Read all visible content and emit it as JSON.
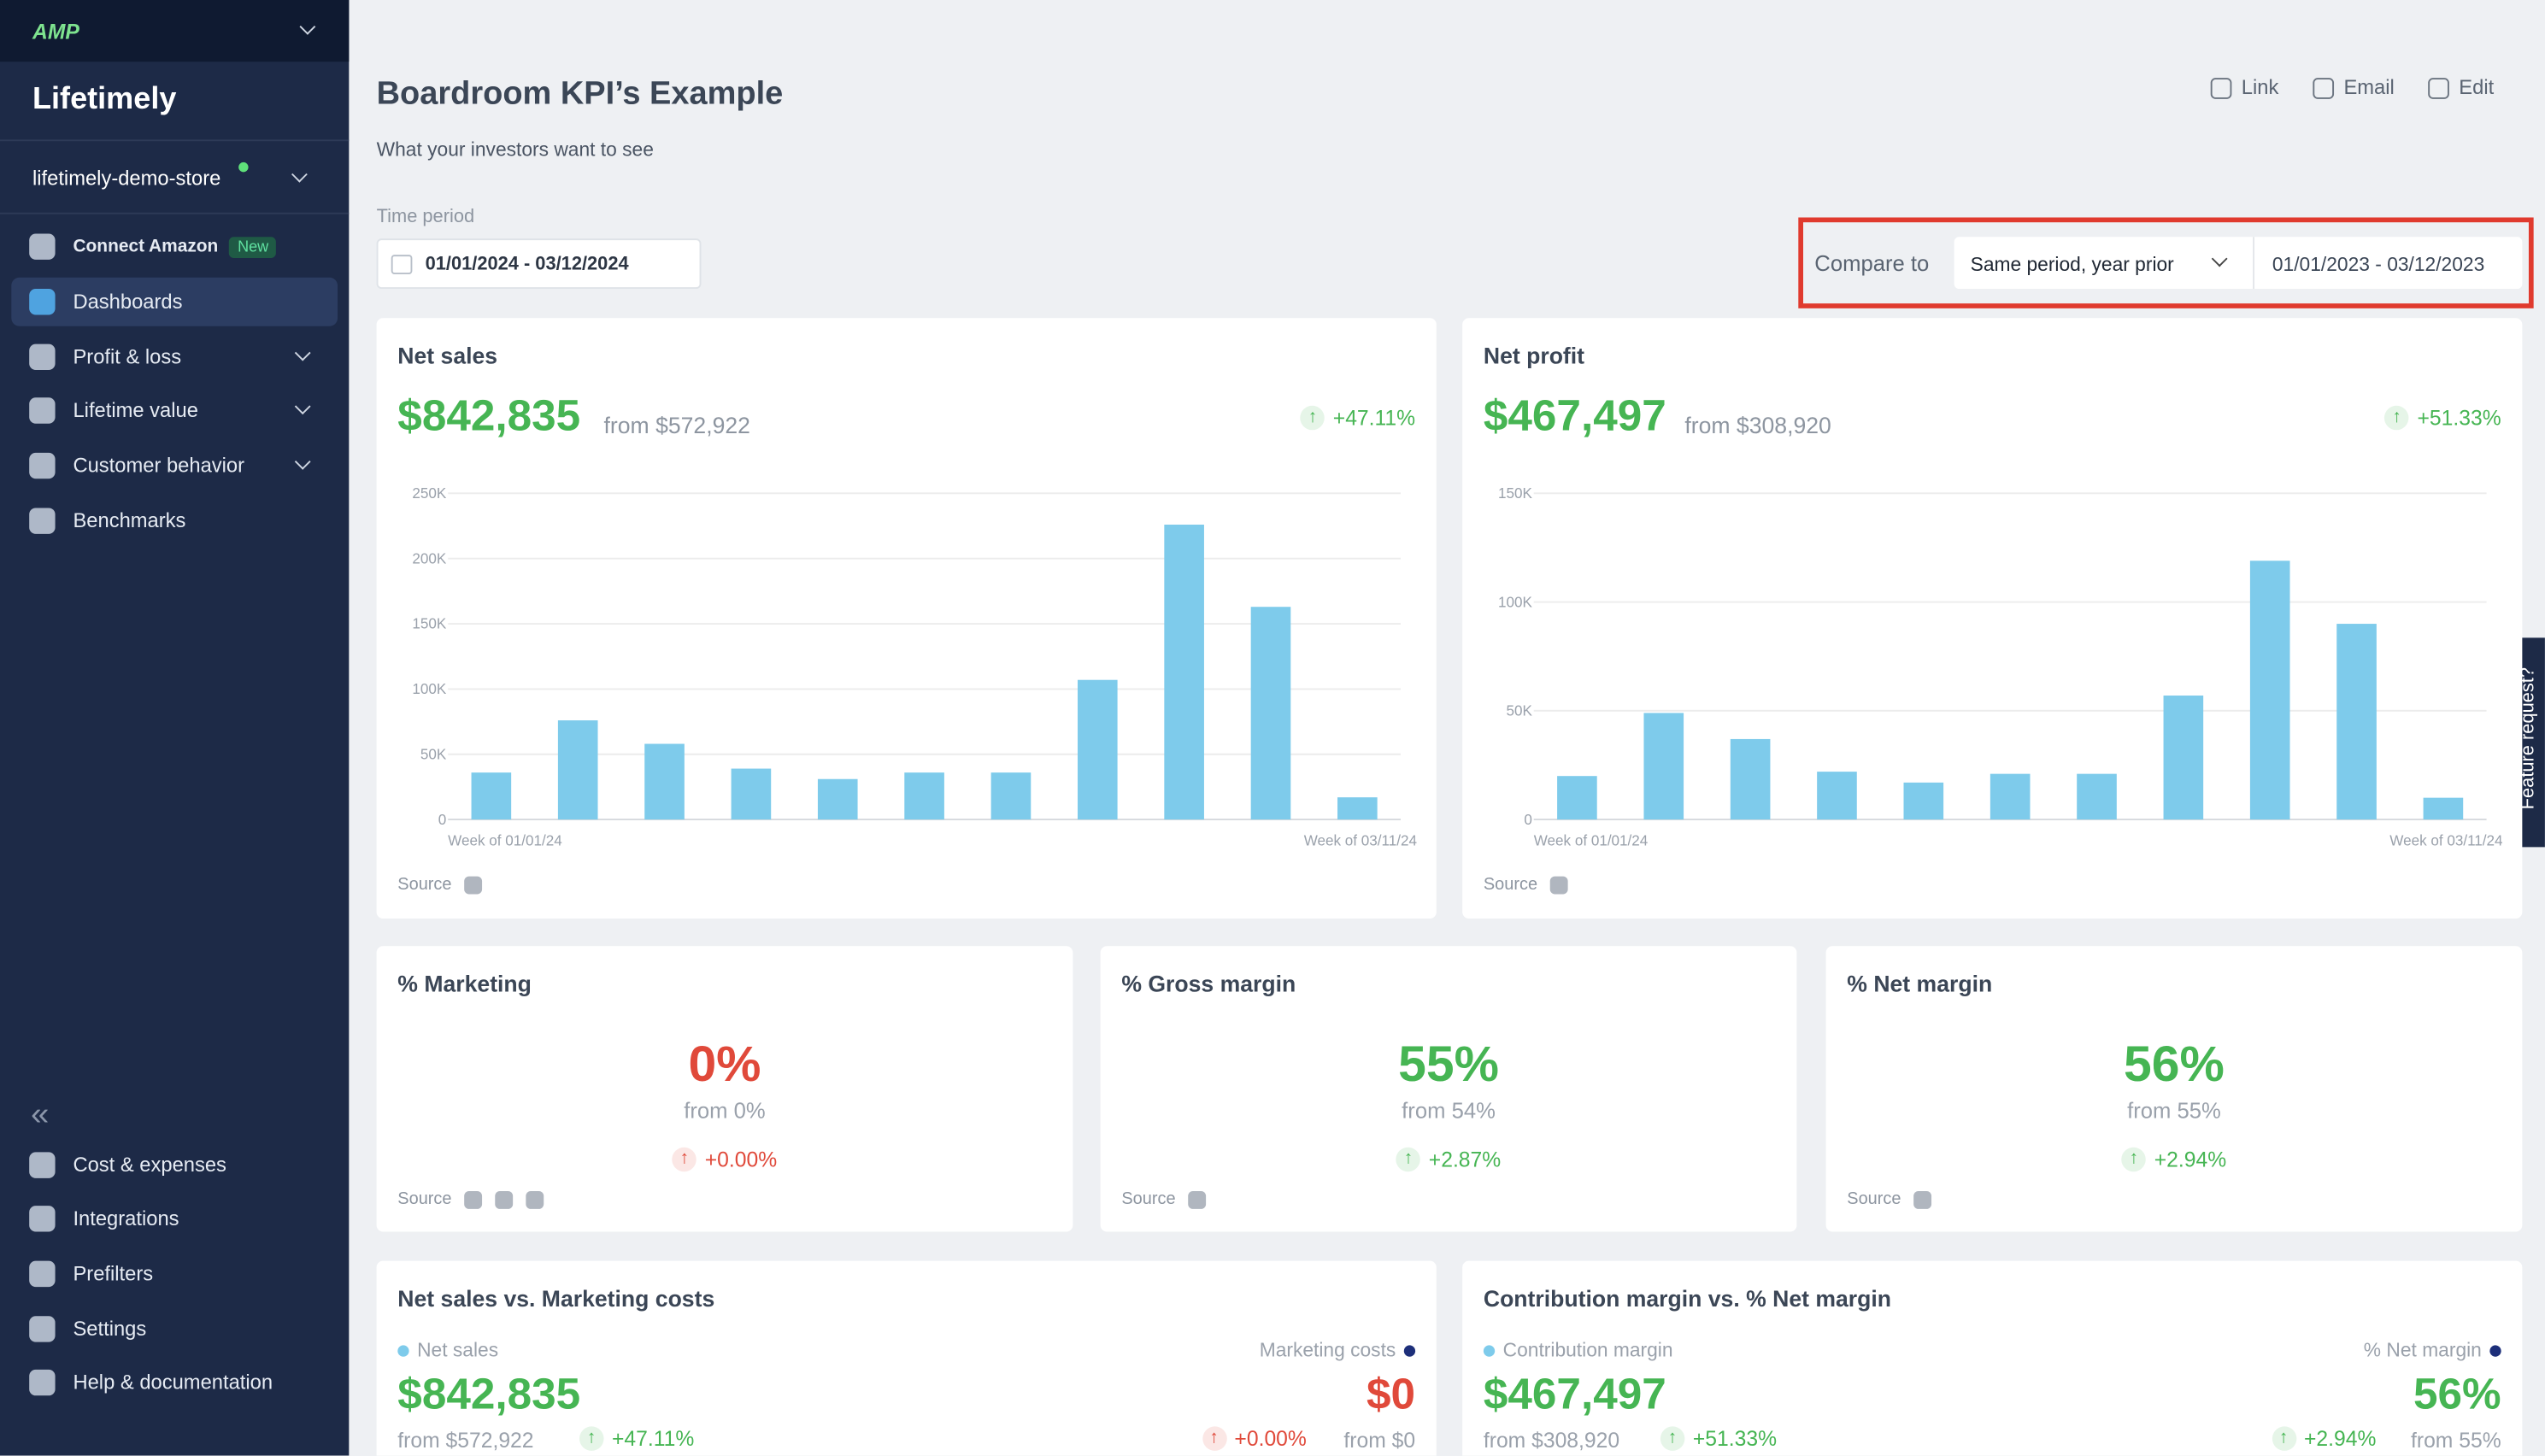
{
  "sidebar": {
    "brand": "AMP",
    "app": "Lifetimely",
    "store": "lifetimely-demo-store",
    "nav": [
      {
        "label": "Connect Amazon",
        "badge": "New"
      },
      {
        "label": "Dashboards"
      },
      {
        "label": "Profit & loss"
      },
      {
        "label": "Lifetime value"
      },
      {
        "label": "Customer behavior"
      },
      {
        "label": "Benchmarks"
      }
    ],
    "bottom_nav": [
      "Cost & expenses",
      "Integrations",
      "Prefilters",
      "Settings",
      "Help & documentation"
    ]
  },
  "header": {
    "title": "Boardroom KPI’s Example",
    "subtitle": "What your investors want to see",
    "actions": [
      "Link",
      "Email",
      "Edit"
    ]
  },
  "filters": {
    "time_period_label": "Time period",
    "time_period": "01/01/2024 - 03/12/2024",
    "compare_label": "Compare to",
    "compare_option": "Same period, year prior",
    "compare_range": "01/01/2023 - 03/12/2023"
  },
  "feature_request": "Feature request?",
  "charts": [
    {
      "title": "Net sales",
      "value": "$842,835",
      "from": "from $572,922",
      "change": "+47.11%",
      "source": "Source",
      "chart_data": {
        "type": "bar",
        "categories": [
          "Week of 01/01/24",
          null,
          null,
          null,
          null,
          null,
          null,
          null,
          null,
          null,
          "Week of 03/11/24"
        ],
        "values": [
          36000,
          76000,
          58000,
          39000,
          31000,
          36000,
          36000,
          107000,
          226000,
          163000,
          17000
        ],
        "color": "#7ecbeb",
        "ylim": [
          0,
          250000
        ],
        "yticks": [
          0,
          {
            "value": 50000,
            "label": "50K"
          },
          {
            "value": 100000,
            "label": "100K"
          },
          {
            "value": 150000,
            "label": "150K"
          },
          {
            "value": 200000,
            "label": "200K"
          },
          {
            "value": 250000,
            "label": "250K"
          }
        ],
        "grid": true
      }
    },
    {
      "title": "Net profit",
      "value": "$467,497",
      "from": "from $308,920",
      "change": "+51.33%",
      "source": "Source",
      "chart_data": {
        "type": "bar",
        "categories": [
          "Week of 01/01/24",
          null,
          null,
          null,
          null,
          null,
          null,
          null,
          null,
          null,
          "Week of 03/11/24"
        ],
        "values": [
          20000,
          49000,
          37000,
          22000,
          17000,
          21000,
          21000,
          57000,
          119000,
          90000,
          10000
        ],
        "color": "#7ecbeb",
        "ylim": [
          0,
          150000
        ],
        "yticks": [
          0,
          {
            "value": 50000,
            "label": "50K"
          },
          {
            "value": 100000,
            "label": "100K"
          },
          {
            "value": 150000,
            "label": "150K"
          }
        ],
        "grid": true
      }
    }
  ],
  "metrics": [
    {
      "title": "% Marketing",
      "value": "0%",
      "from": "from 0%",
      "change": "+0.00%",
      "source": "Source",
      "color": "#e0493a"
    },
    {
      "title": "% Gross margin",
      "value": "55%",
      "from": "from 54%",
      "change": "+2.87%",
      "source": "Source",
      "color": "#46b553"
    },
    {
      "title": "% Net margin",
      "value": "56%",
      "from": "from 55%",
      "change": "+2.94%",
      "source": "Source",
      "color": "#46b553"
    }
  ],
  "comparisons": [
    {
      "title": "Net sales vs. Marketing costs",
      "left": {
        "name": "Net sales",
        "value": "$842,835",
        "from": "from $572,922",
        "change": "+47.11%",
        "color": "#46b553"
      },
      "right": {
        "name": "Marketing costs",
        "value": "$0",
        "from": "from $0",
        "change": "+0.00%",
        "color": "#e0493a"
      }
    },
    {
      "title": "Contribution margin vs. % Net margin",
      "left": {
        "name": "Contribution margin",
        "value": "$467,497",
        "from": "from $308,920",
        "change": "+51.33%",
        "color": "#46b553"
      },
      "right": {
        "name": "% Net margin",
        "value": "56%",
        "from": "from 55%",
        "change": "+2.94%",
        "color": "#46b553"
      }
    }
  ]
}
